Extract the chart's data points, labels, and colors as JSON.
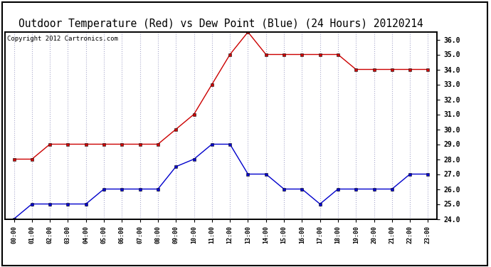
{
  "title": "Outdoor Temperature (Red) vs Dew Point (Blue) (24 Hours) 20120214",
  "copyright": "Copyright 2012 Cartronics.com",
  "hours": [
    "00:00",
    "01:00",
    "02:00",
    "03:00",
    "04:00",
    "05:00",
    "06:00",
    "07:00",
    "08:00",
    "09:00",
    "10:00",
    "11:00",
    "12:00",
    "13:00",
    "14:00",
    "15:00",
    "16:00",
    "17:00",
    "18:00",
    "19:00",
    "20:00",
    "21:00",
    "22:00",
    "23:00"
  ],
  "temp_red": [
    28.0,
    28.0,
    29.0,
    29.0,
    29.0,
    29.0,
    29.0,
    29.0,
    29.0,
    30.0,
    31.0,
    33.0,
    35.0,
    36.5,
    35.0,
    35.0,
    35.0,
    35.0,
    35.0,
    34.0,
    34.0,
    34.0,
    34.0,
    34.0
  ],
  "dew_blue": [
    24.0,
    25.0,
    25.0,
    25.0,
    25.0,
    26.0,
    26.0,
    26.0,
    26.0,
    27.5,
    28.0,
    29.0,
    29.0,
    27.0,
    27.0,
    26.0,
    26.0,
    25.0,
    26.0,
    26.0,
    26.0,
    26.0,
    27.0,
    27.0
  ],
  "ylim": [
    24.0,
    36.0
  ],
  "yticks": [
    24.0,
    25.0,
    26.0,
    27.0,
    28.0,
    29.0,
    30.0,
    31.0,
    32.0,
    33.0,
    34.0,
    35.0,
    36.0
  ],
  "red_color": "#cc0000",
  "blue_color": "#0000cc",
  "background_color": "#ffffff",
  "grid_color": "#aaaacc",
  "title_fontsize": 10.5,
  "copyright_fontsize": 6.5
}
